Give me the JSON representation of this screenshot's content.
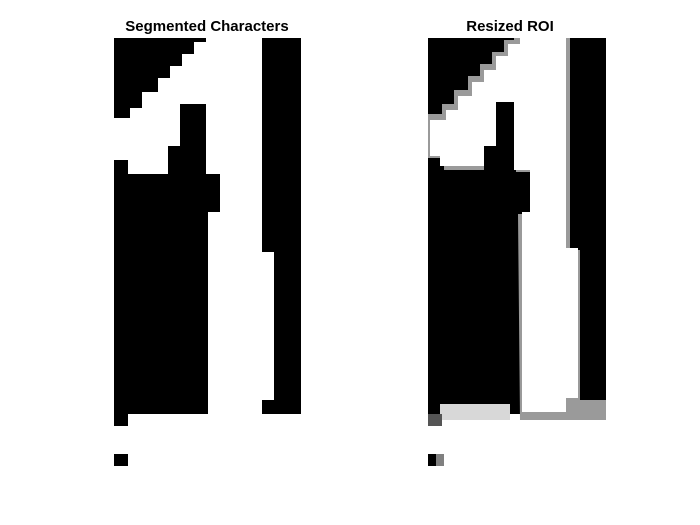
{
  "figure": {
    "background": "#ffffff",
    "panels": [
      {
        "title": "Segmented Characters",
        "image_type": "binary",
        "colors": {
          "foreground": "#ffffff",
          "background": "#000000"
        }
      },
      {
        "title": "Resized ROI",
        "image_type": "grayscale",
        "colors": {
          "foreground": "#ffffff",
          "background": "#000000",
          "edge": "#8c8c8c"
        }
      }
    ]
  }
}
